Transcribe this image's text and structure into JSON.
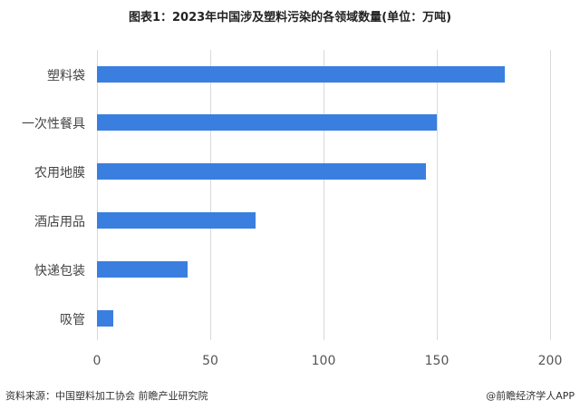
{
  "chart_data": {
    "type": "bar",
    "orientation": "horizontal",
    "title": "图表1：2023年中国涉及塑料污染的各领域数量(单位：万吨)",
    "categories": [
      "塑料袋",
      "一次性餐具",
      "农用地膜",
      "酒店用品",
      "快递包装",
      "吸管"
    ],
    "values": [
      180,
      150,
      145,
      70,
      40,
      7
    ],
    "xlabel": "",
    "ylabel": "",
    "xlim": [
      0,
      200
    ],
    "xticks": [
      "0",
      "50",
      "100",
      "150",
      "200"
    ],
    "grid": true,
    "bar_color": "#3a7fe0"
  },
  "footer": {
    "source": "资料来源：中国塑料加工协会 前瞻产业研究院",
    "credit": "@前瞻经济学人APP"
  }
}
